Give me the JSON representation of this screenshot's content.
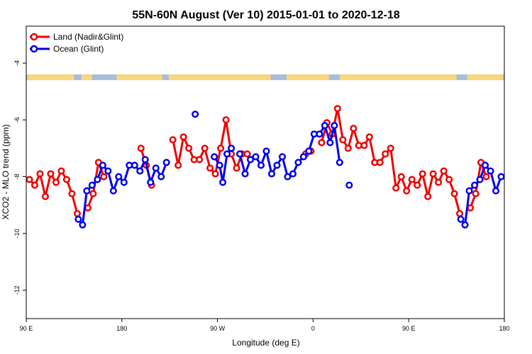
{
  "chart_data": {
    "type": "line",
    "title": "55N-60N August (Ver 10)   2015-01-01 to 2020-12-18",
    "xlabel": "Longitude (deg E)",
    "ylabel": "XCO2 - MLO trend (ppm)",
    "xlim": [
      90,
      540
    ],
    "ylim": [
      -13.0,
      -2.7
    ],
    "xticks": [
      {
        "value": 90,
        "label": "90 E"
      },
      {
        "value": 180,
        "label": "180"
      },
      {
        "value": 270,
        "label": "90 W"
      },
      {
        "value": 360,
        "label": "0"
      },
      {
        "value": 450,
        "label": "90 E"
      },
      {
        "value": 540,
        "label": "180"
      }
    ],
    "yticks": [
      {
        "value": -4,
        "label": "-4"
      },
      {
        "value": -6,
        "label": "-6"
      },
      {
        "value": -8,
        "label": "-8"
      },
      {
        "value": -10,
        "label": "-10"
      },
      {
        "value": -12,
        "label": "-12"
      }
    ],
    "legend_position": "top-left",
    "land_band": {
      "y_range": [
        -4.6,
        -4.4
      ],
      "ocean_color": "#a7bcd8",
      "land_color": "#f7d77c"
    },
    "series": [
      {
        "name": "Land (Nadir&Glint)",
        "color": "#ee0000",
        "points": [
          [
            93,
            -8.1
          ],
          [
            98,
            -8.3
          ],
          [
            103,
            -7.9
          ],
          [
            108,
            -8.7
          ],
          [
            113,
            -7.9
          ],
          [
            118,
            -8.2
          ],
          [
            123,
            -7.8
          ],
          [
            128,
            -8.1
          ],
          [
            133,
            -8.6
          ],
          [
            138,
            -9.3
          ],
          [
            148,
            -9.1
          ],
          [
            153,
            -8.6
          ],
          [
            158,
            -7.5
          ],
          [
            163,
            -8.0
          ],
          [
            198,
            -7.0
          ],
          [
            203,
            -7.6
          ],
          [
            208,
            -8.3
          ],
          [
            228,
            -6.7
          ],
          [
            233,
            -7.6
          ],
          [
            238,
            -6.6
          ],
          [
            243,
            -7.0
          ],
          [
            248,
            -7.4
          ],
          [
            253,
            -7.4
          ],
          [
            258,
            -7.0
          ],
          [
            263,
            -7.7
          ],
          [
            268,
            -7.9
          ],
          [
            273,
            -7.0
          ],
          [
            278,
            -6.0
          ],
          [
            283,
            -7.2
          ],
          [
            288,
            -7.7
          ],
          [
            293,
            -7.2
          ],
          [
            298,
            -7.2
          ],
          [
            353,
            -7.2
          ],
          [
            358,
            -7.1
          ],
          [
            368,
            -6.8
          ],
          [
            373,
            -6.1
          ],
          [
            378,
            -6.5
          ],
          [
            383,
            -5.6
          ],
          [
            388,
            -6.7
          ],
          [
            393,
            -7.0
          ],
          [
            398,
            -6.3
          ],
          [
            403,
            -6.9
          ],
          [
            408,
            -6.9
          ],
          [
            413,
            -6.6
          ],
          [
            418,
            -7.5
          ],
          [
            423,
            -7.5
          ],
          [
            428,
            -7.2
          ],
          [
            433,
            -7.0
          ],
          [
            438,
            -8.4
          ],
          [
            443,
            -8.0
          ],
          [
            448,
            -8.5
          ],
          [
            453,
            -8.1
          ],
          [
            458,
            -8.3
          ],
          [
            463,
            -7.9
          ],
          [
            468,
            -8.7
          ],
          [
            473,
            -7.9
          ],
          [
            478,
            -8.2
          ],
          [
            483,
            -7.8
          ],
          [
            488,
            -8.1
          ],
          [
            493,
            -8.6
          ],
          [
            498,
            -9.3
          ],
          [
            508,
            -9.1
          ],
          [
            513,
            -8.6
          ],
          [
            518,
            -7.5
          ],
          [
            523,
            -8.0
          ]
        ]
      },
      {
        "name": "Ocean (Glint)",
        "color": "#0000ee",
        "points": [
          [
            139,
            -9.5
          ],
          [
            143,
            -9.7
          ],
          [
            147,
            -8.5
          ],
          [
            152,
            -8.3
          ],
          [
            157,
            -8.1
          ],
          [
            162,
            -7.6
          ],
          [
            167,
            -7.8
          ],
          [
            172,
            -8.5
          ],
          [
            177,
            -8.0
          ],
          [
            182,
            -8.2
          ],
          [
            187,
            -7.6
          ],
          [
            192,
            -7.6
          ],
          [
            197,
            -7.8
          ],
          [
            202,
            -7.4
          ],
          [
            207,
            -8.2
          ],
          [
            212,
            -7.7
          ],
          [
            217,
            -8.0
          ],
          [
            222,
            -7.5
          ],
          [
            267,
            -7.3
          ],
          [
            272,
            -7.6
          ],
          [
            275,
            -8.2
          ],
          [
            279,
            -7.2
          ],
          [
            283,
            -7.0
          ],
          [
            291,
            -7.2
          ],
          [
            296,
            -7.9
          ],
          [
            301,
            -7.4
          ],
          [
            306,
            -7.3
          ],
          [
            311,
            -7.6
          ],
          [
            316,
            -7.1
          ],
          [
            321,
            -7.9
          ],
          [
            326,
            -7.6
          ],
          [
            331,
            -7.3
          ],
          [
            336,
            -8.0
          ],
          [
            341,
            -7.9
          ],
          [
            346,
            -7.5
          ],
          [
            351,
            -7.3
          ],
          [
            356,
            -7.1
          ],
          [
            361,
            -6.5
          ],
          [
            366,
            -6.5
          ],
          [
            371,
            -6.2
          ],
          [
            376,
            -6.8
          ],
          [
            380,
            -6.2
          ],
          [
            385,
            -7.5
          ],
          [
            499,
            -9.5
          ],
          [
            503,
            -9.7
          ],
          [
            507,
            -8.5
          ],
          [
            512,
            -8.3
          ],
          [
            517,
            -8.1
          ],
          [
            522,
            -7.6
          ],
          [
            527,
            -7.8
          ],
          [
            532,
            -8.5
          ],
          [
            537,
            -8.0
          ]
        ],
        "isolated_points": [
          [
            249,
            -5.8
          ],
          [
            394,
            -8.3
          ]
        ]
      }
    ]
  }
}
